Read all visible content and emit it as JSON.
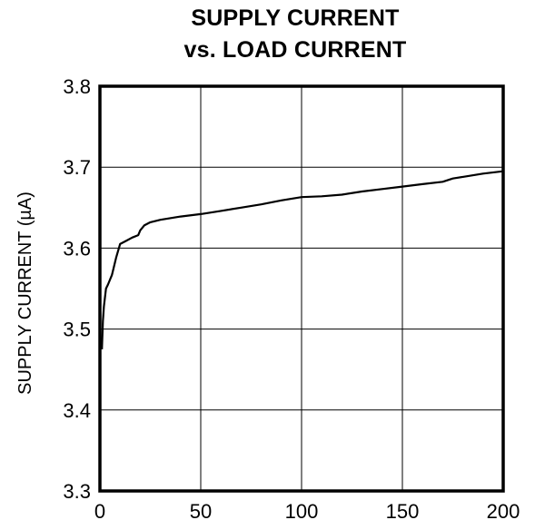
{
  "chart_data": {
    "type": "line",
    "title_line1": "SUPPLY CURRENT",
    "title_line2": "vs. LOAD CURRENT",
    "xlabel": "",
    "ylabel": "SUPPLY CURRENT (µA)",
    "xlim": [
      0,
      200
    ],
    "ylim": [
      3.3,
      3.8
    ],
    "xticks": [
      "0",
      "50",
      "100",
      "150",
      "200"
    ],
    "yticks": [
      "3.8",
      "3.7",
      "3.6",
      "3.5",
      "3.4",
      "3.3"
    ],
    "grid": true,
    "series": [
      {
        "x": [
          1,
          1.5,
          2,
          3,
          4,
          6,
          8,
          10,
          13,
          16,
          19,
          20,
          22,
          25,
          30,
          40,
          50,
          60,
          70,
          80,
          90,
          100,
          110,
          120,
          130,
          140,
          150,
          160,
          170,
          175,
          180,
          190,
          200
        ],
        "y": [
          3.475,
          3.51,
          3.528,
          3.55,
          3.555,
          3.567,
          3.588,
          3.605,
          3.609,
          3.613,
          3.616,
          3.622,
          3.628,
          3.632,
          3.635,
          3.639,
          3.642,
          3.646,
          3.65,
          3.654,
          3.659,
          3.663,
          3.664,
          3.666,
          3.67,
          3.673,
          3.676,
          3.679,
          3.682,
          3.686,
          3.688,
          3.692,
          3.695
        ]
      }
    ]
  }
}
